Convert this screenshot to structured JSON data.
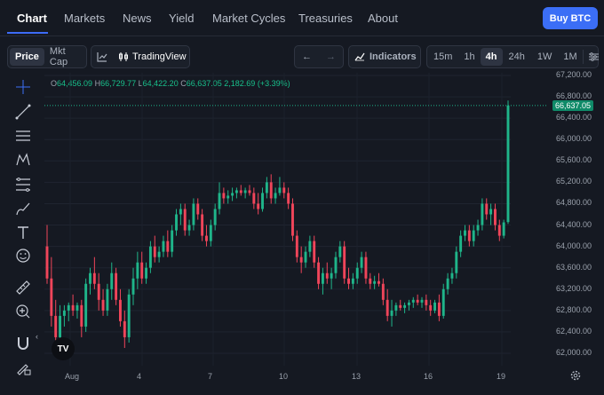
{
  "nav": {
    "items": [
      "Chart",
      "Markets",
      "News",
      "Yield",
      "Market Cycles",
      "Treasuries",
      "About"
    ],
    "active": "Chart",
    "buy_label": "Buy BTC"
  },
  "toolbar": {
    "price_label": "Price",
    "mktcap_label": "Mkt Cap",
    "tradingview_label": "TradingView",
    "indicators_label": "Indicators",
    "intervals": [
      "15m",
      "1h",
      "4h",
      "24h",
      "1W",
      "1M"
    ],
    "active_interval": "4h"
  },
  "ohlc": {
    "o_label": "O",
    "o": "64,456.09",
    "h_label": "H",
    "h": "66,729.77",
    "l_label": "L",
    "l": "64,422.20",
    "c_label": "C",
    "c": "66,637.05",
    "change": "2,182.69 (+3.39%)"
  },
  "last_price": "66,637.05",
  "logo_text": "TV",
  "colors": {
    "up": "#1fb58a",
    "down": "#f0455a",
    "accent": "#3b6ef6",
    "bg": "#151922"
  },
  "chart_data": {
    "type": "candlestick",
    "y_ticks": [
      "67,200.00",
      "66,800.00",
      "66,400.00",
      "66,000.00",
      "65,600.00",
      "65,200.00",
      "64,800.00",
      "64,400.00",
      "64,000.00",
      "63,600.00",
      "63,200.00",
      "62,800.00",
      "62,400.00",
      "62,000.00"
    ],
    "x_ticks": [
      "Aug",
      "4",
      "7",
      "10",
      "13",
      "16",
      "19"
    ],
    "ylim": [
      61800,
      67300
    ],
    "candles": [
      {
        "o": 64000,
        "h": 64400,
        "l": 63300,
        "c": 63400
      },
      {
        "o": 63400,
        "h": 63800,
        "l": 62500,
        "c": 62700
      },
      {
        "o": 62700,
        "h": 63000,
        "l": 62000,
        "c": 62300
      },
      {
        "o": 62300,
        "h": 62900,
        "l": 62200,
        "c": 62700
      },
      {
        "o": 62700,
        "h": 62900,
        "l": 62500,
        "c": 62800
      },
      {
        "o": 62800,
        "h": 62950,
        "l": 62600,
        "c": 62900
      },
      {
        "o": 62900,
        "h": 63100,
        "l": 62700,
        "c": 62800
      },
      {
        "o": 62800,
        "h": 62950,
        "l": 62650,
        "c": 62900
      },
      {
        "o": 62900,
        "h": 63000,
        "l": 62300,
        "c": 62500
      },
      {
        "o": 62500,
        "h": 63400,
        "l": 62400,
        "c": 63300
      },
      {
        "o": 63300,
        "h": 63600,
        "l": 63100,
        "c": 63500
      },
      {
        "o": 63500,
        "h": 63800,
        "l": 63200,
        "c": 63300
      },
      {
        "o": 63300,
        "h": 63500,
        "l": 62800,
        "c": 63000
      },
      {
        "o": 63000,
        "h": 63200,
        "l": 62700,
        "c": 62800
      },
      {
        "o": 62800,
        "h": 63300,
        "l": 62700,
        "c": 63200
      },
      {
        "o": 63200,
        "h": 63700,
        "l": 63000,
        "c": 63500
      },
      {
        "o": 63500,
        "h": 63600,
        "l": 62900,
        "c": 63000
      },
      {
        "o": 63000,
        "h": 63200,
        "l": 62500,
        "c": 62600
      },
      {
        "o": 62600,
        "h": 62800,
        "l": 62100,
        "c": 62300
      },
      {
        "o": 62300,
        "h": 63200,
        "l": 62200,
        "c": 63100
      },
      {
        "o": 63100,
        "h": 63600,
        "l": 62900,
        "c": 63400
      },
      {
        "o": 63400,
        "h": 63900,
        "l": 63200,
        "c": 63700
      },
      {
        "o": 63700,
        "h": 63900,
        "l": 63300,
        "c": 63400
      },
      {
        "o": 63400,
        "h": 63700,
        "l": 63300,
        "c": 63600
      },
      {
        "o": 63600,
        "h": 64100,
        "l": 63500,
        "c": 64000
      },
      {
        "o": 64000,
        "h": 64200,
        "l": 63700,
        "c": 63800
      },
      {
        "o": 63800,
        "h": 64000,
        "l": 63700,
        "c": 63900
      },
      {
        "o": 63900,
        "h": 64200,
        "l": 63800,
        "c": 64100
      },
      {
        "o": 64100,
        "h": 64300,
        "l": 63800,
        "c": 63900
      },
      {
        "o": 63900,
        "h": 64400,
        "l": 63800,
        "c": 64300
      },
      {
        "o": 64300,
        "h": 64700,
        "l": 64200,
        "c": 64600
      },
      {
        "o": 64600,
        "h": 64800,
        "l": 64400,
        "c": 64700
      },
      {
        "o": 64700,
        "h": 64800,
        "l": 64200,
        "c": 64300
      },
      {
        "o": 64300,
        "h": 64500,
        "l": 64200,
        "c": 64400
      },
      {
        "o": 64400,
        "h": 64900,
        "l": 64300,
        "c": 64800
      },
      {
        "o": 64800,
        "h": 64900,
        "l": 64500,
        "c": 64600
      },
      {
        "o": 64600,
        "h": 64700,
        "l": 64100,
        "c": 64200
      },
      {
        "o": 64200,
        "h": 64400,
        "l": 64000,
        "c": 64100
      },
      {
        "o": 64100,
        "h": 64500,
        "l": 64000,
        "c": 64400
      },
      {
        "o": 64400,
        "h": 64800,
        "l": 64300,
        "c": 64700
      },
      {
        "o": 64700,
        "h": 65200,
        "l": 64600,
        "c": 65000
      },
      {
        "o": 65000,
        "h": 65100,
        "l": 64800,
        "c": 64900
      },
      {
        "o": 64900,
        "h": 65050,
        "l": 64800,
        "c": 64950
      },
      {
        "o": 64950,
        "h": 65100,
        "l": 64850,
        "c": 65000
      },
      {
        "o": 65000,
        "h": 65100,
        "l": 64900,
        "c": 65050
      },
      {
        "o": 65050,
        "h": 65150,
        "l": 64950,
        "c": 65000
      },
      {
        "o": 65000,
        "h": 65100,
        "l": 64900,
        "c": 65050
      },
      {
        "o": 65050,
        "h": 65150,
        "l": 64950,
        "c": 65000
      },
      {
        "o": 65000,
        "h": 65100,
        "l": 64700,
        "c": 64800
      },
      {
        "o": 64800,
        "h": 65000,
        "l": 64600,
        "c": 64700
      },
      {
        "o": 64700,
        "h": 65100,
        "l": 64650,
        "c": 65000
      },
      {
        "o": 65000,
        "h": 65300,
        "l": 64900,
        "c": 65200
      },
      {
        "o": 65200,
        "h": 65350,
        "l": 64800,
        "c": 64900
      },
      {
        "o": 64900,
        "h": 65100,
        "l": 64800,
        "c": 65000
      },
      {
        "o": 65000,
        "h": 65300,
        "l": 64950,
        "c": 65100
      },
      {
        "o": 65100,
        "h": 65200,
        "l": 64900,
        "c": 65000
      },
      {
        "o": 65000,
        "h": 65100,
        "l": 64700,
        "c": 64800
      },
      {
        "o": 64800,
        "h": 64900,
        "l": 64100,
        "c": 64200
      },
      {
        "o": 64200,
        "h": 64300,
        "l": 63700,
        "c": 63800
      },
      {
        "o": 63800,
        "h": 64000,
        "l": 63500,
        "c": 63700
      },
      {
        "o": 63700,
        "h": 64000,
        "l": 63600,
        "c": 63900
      },
      {
        "o": 63900,
        "h": 64200,
        "l": 63800,
        "c": 64100
      },
      {
        "o": 64100,
        "h": 64200,
        "l": 63600,
        "c": 63700
      },
      {
        "o": 63700,
        "h": 63800,
        "l": 63200,
        "c": 63300
      },
      {
        "o": 63300,
        "h": 63600,
        "l": 63100,
        "c": 63500
      },
      {
        "o": 63500,
        "h": 63700,
        "l": 63300,
        "c": 63400
      },
      {
        "o": 63400,
        "h": 63600,
        "l": 63200,
        "c": 63500
      },
      {
        "o": 63500,
        "h": 63900,
        "l": 63400,
        "c": 63800
      },
      {
        "o": 63800,
        "h": 64100,
        "l": 63700,
        "c": 64000
      },
      {
        "o": 64000,
        "h": 64100,
        "l": 63300,
        "c": 63400
      },
      {
        "o": 63400,
        "h": 63600,
        "l": 63200,
        "c": 63300
      },
      {
        "o": 63300,
        "h": 63500,
        "l": 63200,
        "c": 63400
      },
      {
        "o": 63400,
        "h": 63700,
        "l": 63300,
        "c": 63600
      },
      {
        "o": 63600,
        "h": 63900,
        "l": 63500,
        "c": 63800
      },
      {
        "o": 63800,
        "h": 63900,
        "l": 63300,
        "c": 63400
      },
      {
        "o": 63400,
        "h": 63500,
        "l": 63200,
        "c": 63300
      },
      {
        "o": 63300,
        "h": 63450,
        "l": 63200,
        "c": 63350
      },
      {
        "o": 63350,
        "h": 63500,
        "l": 63250,
        "c": 63300
      },
      {
        "o": 63300,
        "h": 63400,
        "l": 62900,
        "c": 63000
      },
      {
        "o": 63000,
        "h": 63200,
        "l": 62600,
        "c": 62700
      },
      {
        "o": 62700,
        "h": 63000,
        "l": 62500,
        "c": 62800
      },
      {
        "o": 62800,
        "h": 62950,
        "l": 62700,
        "c": 62900
      },
      {
        "o": 62900,
        "h": 63000,
        "l": 62800,
        "c": 62850
      },
      {
        "o": 62850,
        "h": 62950,
        "l": 62750,
        "c": 62900
      },
      {
        "o": 62900,
        "h": 63000,
        "l": 62800,
        "c": 62950
      },
      {
        "o": 62950,
        "h": 63050,
        "l": 62850,
        "c": 63000
      },
      {
        "o": 63000,
        "h": 63100,
        "l": 62900,
        "c": 62950
      },
      {
        "o": 62950,
        "h": 63050,
        "l": 62850,
        "c": 63000
      },
      {
        "o": 63000,
        "h": 63100,
        "l": 62800,
        "c": 62900
      },
      {
        "o": 62900,
        "h": 63000,
        "l": 62700,
        "c": 62800
      },
      {
        "o": 62800,
        "h": 63000,
        "l": 62750,
        "c": 62950
      },
      {
        "o": 62950,
        "h": 63100,
        "l": 62600,
        "c": 62700
      },
      {
        "o": 62700,
        "h": 63300,
        "l": 62650,
        "c": 63200
      },
      {
        "o": 63200,
        "h": 63500,
        "l": 63100,
        "c": 63400
      },
      {
        "o": 63400,
        "h": 63600,
        "l": 63300,
        "c": 63500
      },
      {
        "o": 63500,
        "h": 64000,
        "l": 63400,
        "c": 63900
      },
      {
        "o": 63900,
        "h": 64300,
        "l": 63800,
        "c": 64200
      },
      {
        "o": 64200,
        "h": 64400,
        "l": 64100,
        "c": 64300
      },
      {
        "o": 64300,
        "h": 64400,
        "l": 64000,
        "c": 64100
      },
      {
        "o": 64100,
        "h": 64400,
        "l": 64000,
        "c": 64300
      },
      {
        "o": 64300,
        "h": 64500,
        "l": 64200,
        "c": 64400
      },
      {
        "o": 64400,
        "h": 64900,
        "l": 64300,
        "c": 64800
      },
      {
        "o": 64800,
        "h": 64900,
        "l": 64500,
        "c": 64600
      },
      {
        "o": 64600,
        "h": 64800,
        "l": 64400,
        "c": 64700
      },
      {
        "o": 64700,
        "h": 64800,
        "l": 64300,
        "c": 64400
      },
      {
        "o": 64400,
        "h": 64500,
        "l": 64100,
        "c": 64200
      },
      {
        "o": 64200,
        "h": 64500,
        "l": 64150,
        "c": 64450
      },
      {
        "o": 64456,
        "h": 66730,
        "l": 64422,
        "c": 66637
      }
    ]
  }
}
